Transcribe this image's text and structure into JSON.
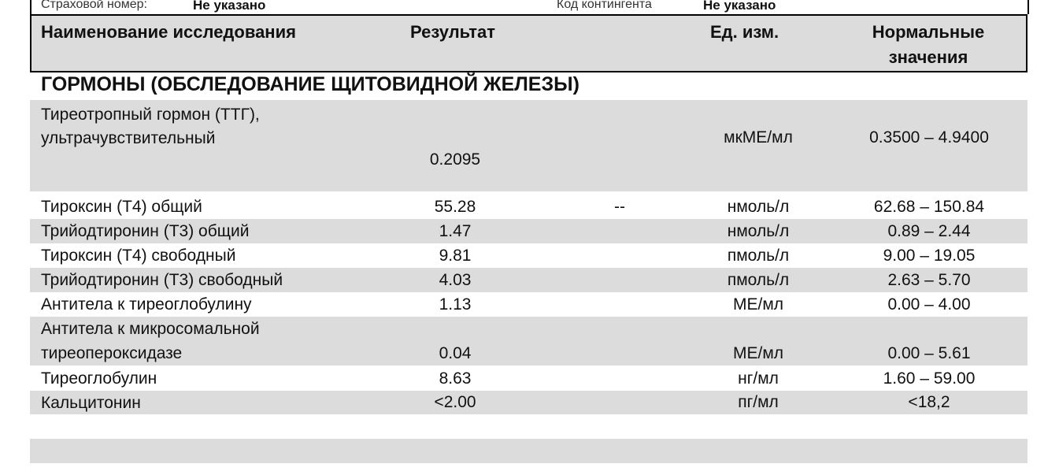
{
  "patient": {
    "insurance_label": "Страховой номер:",
    "insurance_value": "Не указано",
    "contingent_label": "Код контингента",
    "contingent_value": "Не указано"
  },
  "header": {
    "name": "Наименование исследования",
    "result": "Результат",
    "unit": "Ед. изм.",
    "normal_1": "Нормальные",
    "normal_2": "значения"
  },
  "section_title": "ГОРМОНЫ (ОБСЛЕДОВАНИЕ ЩИТОВИДНОЙ ЖЕЛЕЗЫ)",
  "rows": [
    {
      "name1": "Тиреотропный гормон (ТТГ),",
      "name2": "ультрачувствительный",
      "result": "0.2095",
      "flag": "",
      "unit": "мкМЕ/мл",
      "normal": "0.3500 – 4.9400"
    },
    {
      "name1": "Тироксин (Т4) общий",
      "result": "55.28",
      "flag": "--",
      "unit": "нмоль/л",
      "normal": "62.68 – 150.84"
    },
    {
      "name1": "Трийодтиронин (Т3) общий",
      "result": "1.47",
      "flag": "",
      "unit": "нмоль/л",
      "normal": "0.89 – 2.44"
    },
    {
      "name1": "Тироксин (Т4) свободный",
      "result": "9.81",
      "flag": "",
      "unit": "пмоль/л",
      "normal": "9.00 – 19.05"
    },
    {
      "name1": "Трийодтиронин (Т3) свободный",
      "result": "4.03",
      "flag": "",
      "unit": "пмоль/л",
      "normal": "2.63 – 5.70"
    },
    {
      "name1": "Антитела к тиреоглобулину",
      "result": "1.13",
      "flag": "",
      "unit": "МЕ/мл",
      "normal": "0.00 – 4.00"
    },
    {
      "name1": "Антитела к микросомальной",
      "name2": "тиреопероксидазе",
      "result": "0.04",
      "flag": "",
      "unit": "МЕ/мл",
      "normal": "0.00 – 5.61"
    },
    {
      "name1": "Тиреоглобулин",
      "result": "8.63",
      "flag": "",
      "unit": "нг/мл",
      "normal": "1.60 – 59.00"
    },
    {
      "name1": "Кальцитонин",
      "result": "<2.00",
      "flag": "",
      "unit": "пг/мл",
      "normal": "<18,2"
    }
  ]
}
